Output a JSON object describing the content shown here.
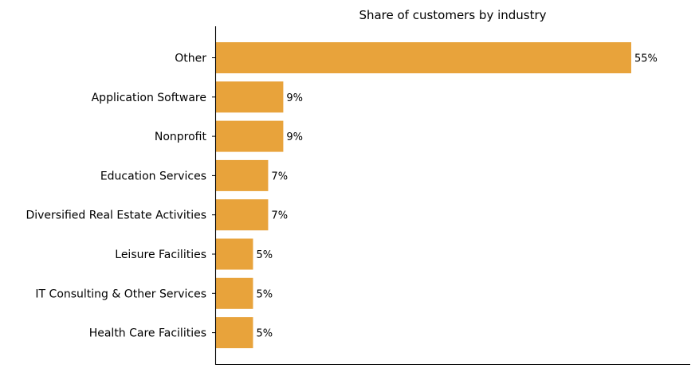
{
  "chart_data": {
    "type": "bar",
    "orientation": "horizontal",
    "title": "Share of customers by industry",
    "xlabel": "",
    "ylabel": "",
    "categories": [
      "Other",
      "Application Software",
      "Nonprofit",
      "Education Services",
      "Diversified Real Estate Activities",
      "Leisure Facilities",
      "IT Consulting & Other Services",
      "Health Care Facilities"
    ],
    "values": [
      55,
      9,
      9,
      7,
      7,
      5,
      5,
      5
    ],
    "value_labels": [
      "55%",
      "9%",
      "9%",
      "7%",
      "7%",
      "5%",
      "5%",
      "5%"
    ],
    "value_unit": "%",
    "xlim": [
      0,
      62.8
    ],
    "grid": false,
    "x_axis_visible": false,
    "legend": "none",
    "bar_color": "#E8A33B"
  }
}
